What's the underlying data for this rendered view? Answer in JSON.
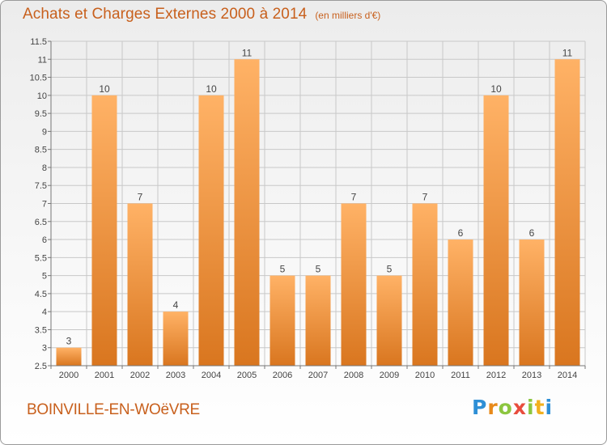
{
  "title": "Achats et Charges Externes 2000 à 2014",
  "subtitle": "(en milliers d'€)",
  "commune": "BOINVILLE-EN-WOëVRE",
  "logo": {
    "letters": [
      "P",
      "r",
      "o",
      "x",
      "i",
      "t",
      "i"
    ],
    "colors": [
      "#2e8fd6",
      "#e88a1a",
      "#8cc63f",
      "#e84c3d",
      "#8cc63f",
      "#f2b01e",
      "#2e8fd6"
    ]
  },
  "colors": {
    "bar_light": "#ffb266",
    "bar_dark": "#d9761f",
    "grid": "#c8c8c8"
  },
  "chart_data": {
    "type": "bar",
    "title": "Achats et Charges Externes 2000 à 2014",
    "categories": [
      "2000",
      "2001",
      "2002",
      "2003",
      "2004",
      "2005",
      "2006",
      "2007",
      "2008",
      "2009",
      "2010",
      "2011",
      "2012",
      "2013",
      "2014"
    ],
    "values": [
      3,
      10,
      7,
      4,
      10,
      11,
      5,
      5,
      7,
      5,
      7,
      6,
      10,
      6,
      11
    ],
    "data_labels": [
      "3",
      "10",
      "7",
      "4",
      "10",
      "11",
      "5",
      "5",
      "7",
      "5",
      "7",
      "6",
      "10",
      "6",
      "11"
    ],
    "ylim": [
      2.5,
      11.5
    ],
    "yticks": [
      2.5,
      3,
      3.5,
      4,
      4.5,
      5,
      5.5,
      6,
      6.5,
      7,
      7.5,
      8,
      8.5,
      9,
      9.5,
      10,
      10.5,
      11,
      11.5
    ],
    "ytick_labels": [
      "2.5",
      "3",
      "3.5",
      "4",
      "4.5",
      "5",
      "5.5",
      "6",
      "6.5",
      "7",
      "7.5",
      "8",
      "8.5",
      "9",
      "9.5",
      "10",
      "10.5",
      "11",
      "11.5"
    ],
    "grid": true,
    "legend": "none"
  }
}
